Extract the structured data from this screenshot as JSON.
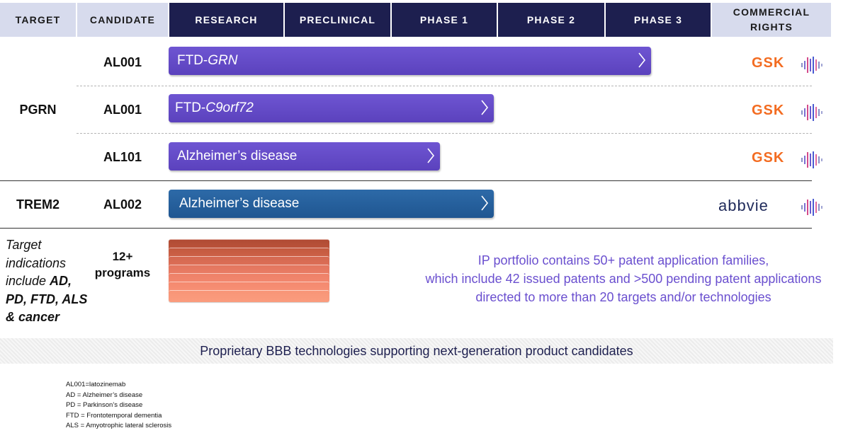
{
  "header": {
    "target": "TARGET",
    "candidate": "CANDIDATE",
    "research": "RESEARCH",
    "preclinical": "PRECLINICAL",
    "phase1": "PHASE 1",
    "phase2": "PHASE 2",
    "phase3": "PHASE 3",
    "rights_line1": "COMMERCIAL",
    "rights_line2": "RIGHTS"
  },
  "targets": {
    "pgrn": "PGRN",
    "trem2": "TREM2"
  },
  "rows": [
    {
      "candidate": "AL001",
      "indication_prefix": "FTD-",
      "indication_italic": "GRN",
      "partner": "GSK",
      "progress": 0.89
    },
    {
      "candidate": "AL001",
      "indication_prefix": "FTD-",
      "indication_italic": "C9orf72",
      "partner": "GSK",
      "progress": 0.6
    },
    {
      "candidate": "AL101",
      "indication_prefix": "Alzheimer’s disease",
      "indication_italic": "",
      "partner": "GSK",
      "progress": 0.5
    },
    {
      "candidate": "AL002",
      "indication_prefix": "Alzheimer’s disease",
      "indication_italic": "",
      "partner": "abbvie",
      "progress": 0.6
    }
  ],
  "early": {
    "target_line1": "Target",
    "target_line2": "indications",
    "target_line3_prefix": "include ",
    "target_line3_bold": "AD,",
    "target_line4_bold": "PD, FTD, ALS",
    "target_line5_bold": "& cancer",
    "programs_line1": "12+",
    "programs_line2": "programs"
  },
  "ip_text": {
    "line1": "IP portfolio contains 50+ patent application families,",
    "line2": "which include 42 issued patents and >500 pending patent applications",
    "line3": "directed to more than 20 targets and/or technologies"
  },
  "banner": "Proprietary BBB technologies supporting next-generation product candidates",
  "footnotes": [
    "AL001=latozinemab",
    "AD = Alzheimer’s disease",
    "PD = Parkinson’s disease",
    "FTD = Frontotemporal dementia",
    "ALS = Amyotrophic lateral sclerosis"
  ],
  "colors": {
    "header_dark": "#1d1f4f",
    "header_light": "#d7dbed",
    "bar_purple": "#5f47c4",
    "bar_blue": "#2762a0",
    "gsk_orange": "#f36c21",
    "ip_text": "#6a4fcf"
  },
  "icons": {
    "chevron": "chevron-right-icon",
    "rights": "partner-waveform-icon"
  }
}
